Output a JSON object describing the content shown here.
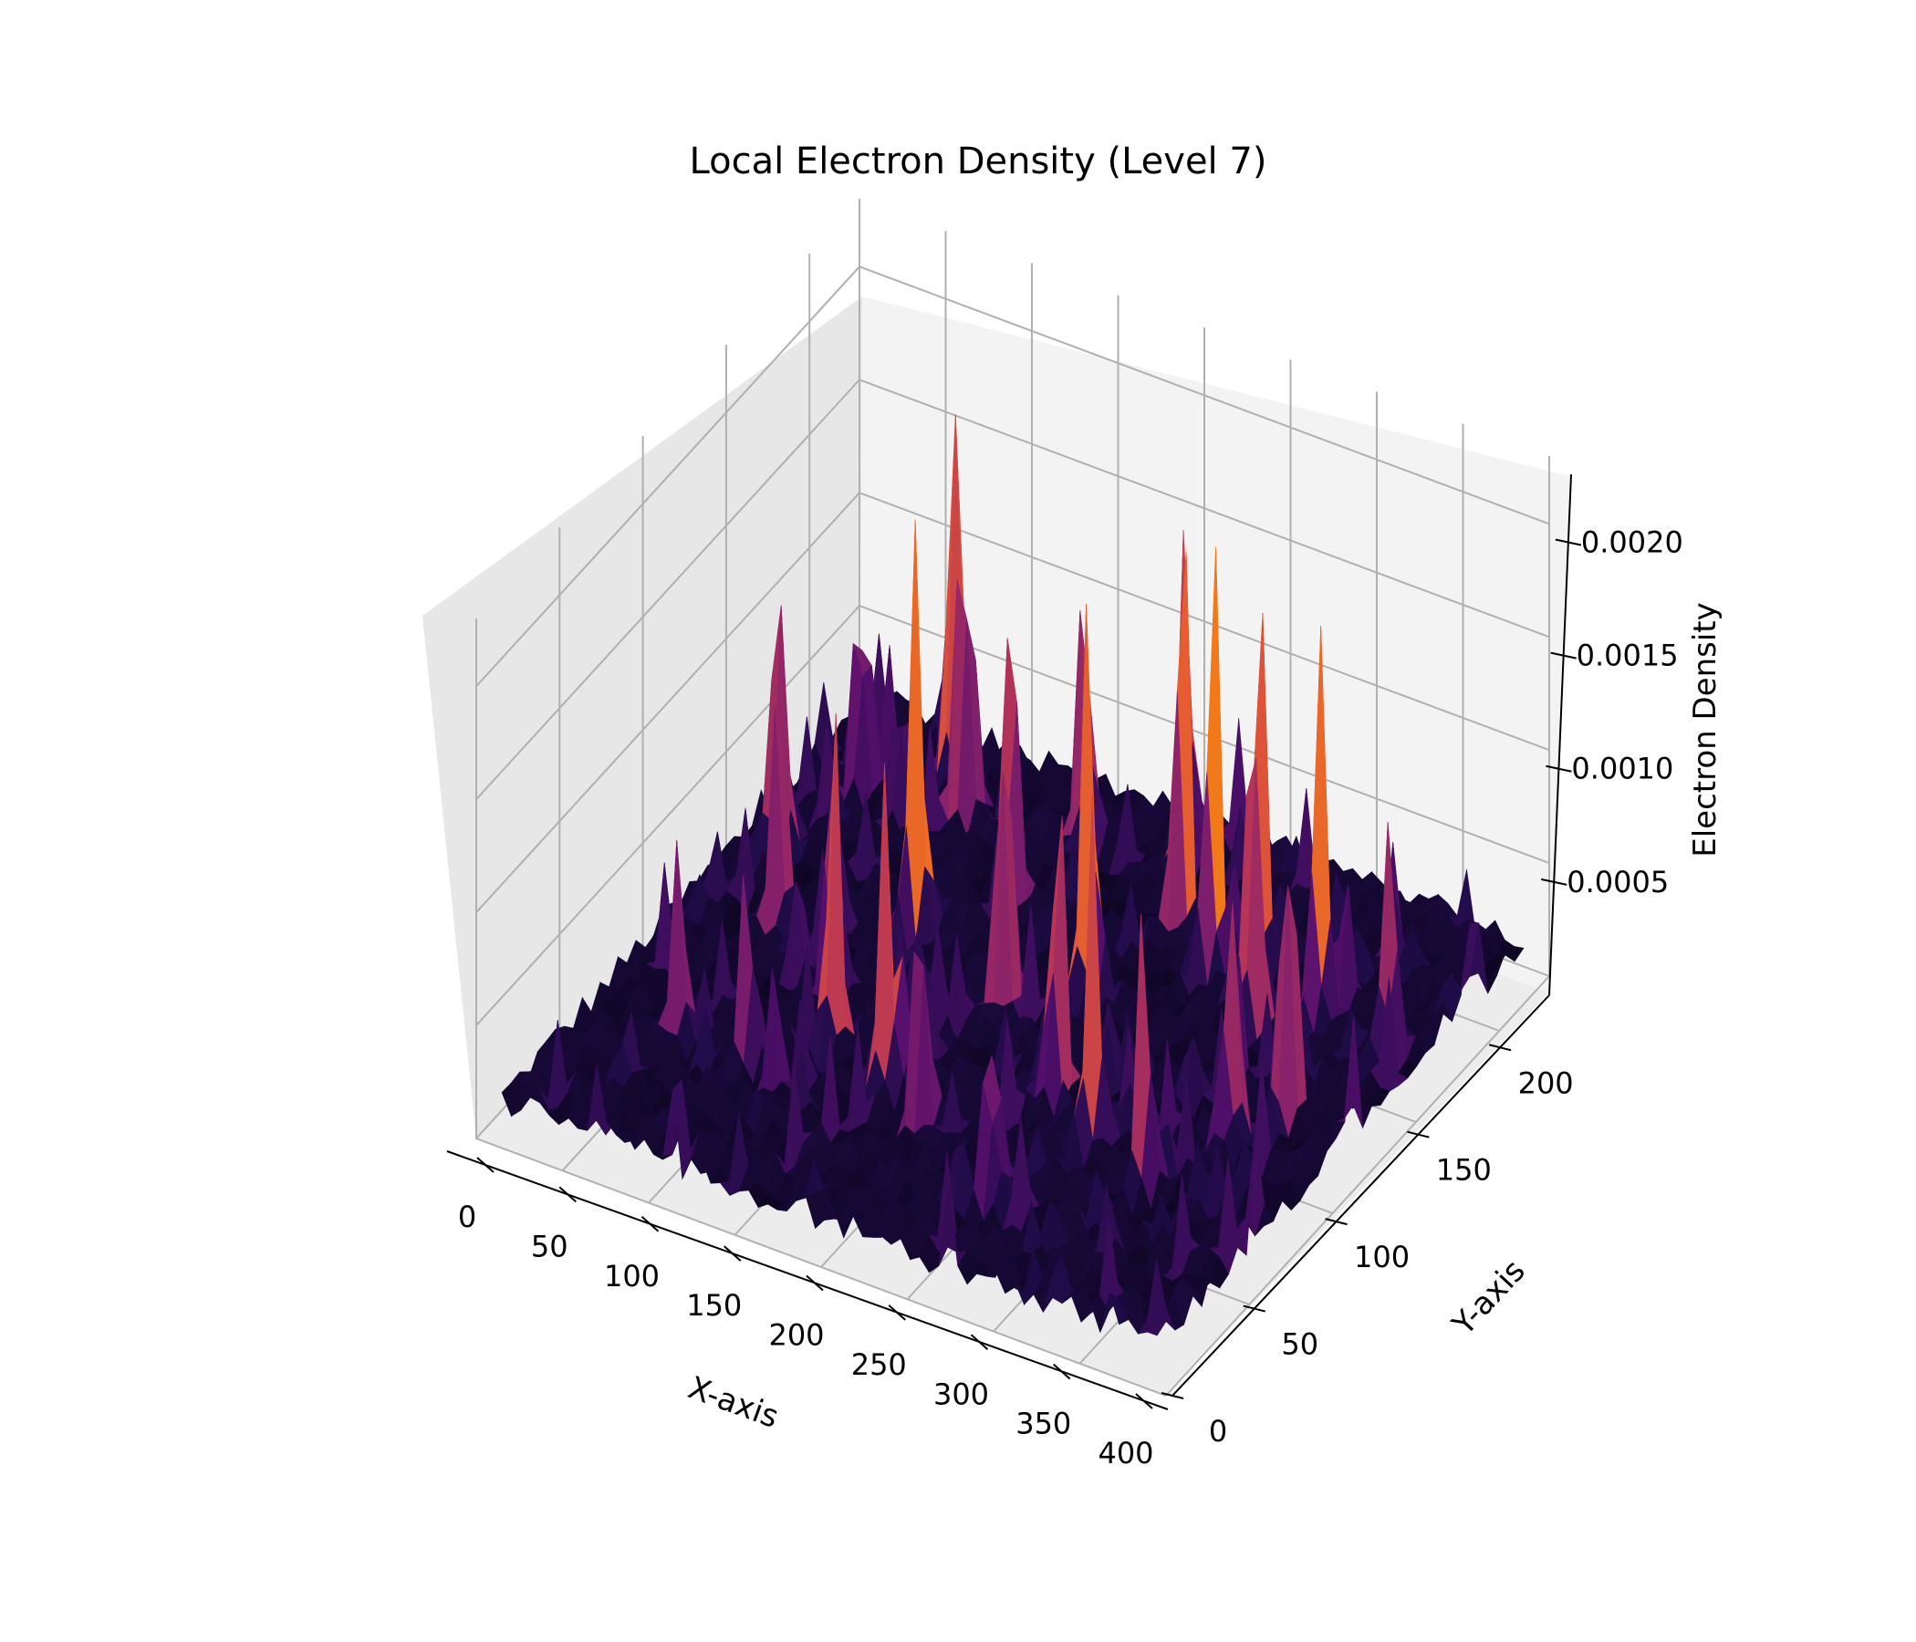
{
  "chart_data": {
    "type": "surface3d",
    "title": "Local Electron Density (Level 7)",
    "xlabel": "X-axis",
    "ylabel": "Y-axis",
    "zlabel": "Electron Density",
    "xlim": [
      0,
      400
    ],
    "ylim": [
      0,
      230
    ],
    "zlim": [
      0,
      0.0023
    ],
    "xticks": [
      "0",
      "50",
      "100",
      "150",
      "200",
      "250",
      "300",
      "350",
      "400"
    ],
    "yticks": [
      "0",
      "50",
      "100",
      "150",
      "200"
    ],
    "zticks": [
      "0.0005",
      "0.0010",
      "0.0015",
      "0.0020"
    ],
    "colormap": "inferno",
    "grid": true,
    "peaks": [
      {
        "x": 235,
        "y": 180,
        "z": 0.0021
      },
      {
        "x": 263,
        "y": 170,
        "z": 0.00205
      },
      {
        "x": 285,
        "y": 175,
        "z": 0.0019
      },
      {
        "x": 95,
        "y": 195,
        "z": 0.0019
      },
      {
        "x": 120,
        "y": 140,
        "z": 0.00185
      },
      {
        "x": 75,
        "y": 210,
        "z": 0.0018
      },
      {
        "x": 330,
        "y": 165,
        "z": 0.00185
      },
      {
        "x": 305,
        "y": 150,
        "z": 0.0017
      },
      {
        "x": 395,
        "y": 195,
        "z": 0.0018
      },
      {
        "x": 220,
        "y": 140,
        "z": 0.00175
      },
      {
        "x": 190,
        "y": 120,
        "z": 0.00165
      },
      {
        "x": 150,
        "y": 165,
        "z": 0.0016
      },
      {
        "x": 355,
        "y": 120,
        "z": 0.00165
      },
      {
        "x": 30,
        "y": 150,
        "z": 0.0014
      },
      {
        "x": 40,
        "y": 190,
        "z": 0.0013
      },
      {
        "x": 60,
        "y": 120,
        "z": 0.00125
      },
      {
        "x": 130,
        "y": 80,
        "z": 0.0015
      },
      {
        "x": 170,
        "y": 70,
        "z": 0.0014
      },
      {
        "x": 245,
        "y": 95,
        "z": 0.0016
      },
      {
        "x": 280,
        "y": 80,
        "z": 0.00145
      },
      {
        "x": 320,
        "y": 70,
        "z": 0.0013
      },
      {
        "x": 200,
        "y": 60,
        "z": 0.0012
      },
      {
        "x": 100,
        "y": 60,
        "z": 0.0011
      },
      {
        "x": 340,
        "y": 100,
        "z": 0.00125
      },
      {
        "x": 375,
        "y": 160,
        "z": 0.00115
      },
      {
        "x": 160,
        "y": 200,
        "z": 0.0014
      },
      {
        "x": 110,
        "y": 100,
        "z": 0.0012
      },
      {
        "x": 260,
        "y": 40,
        "z": 0.001
      },
      {
        "x": 210,
        "y": 210,
        "z": 0.0013
      },
      {
        "x": 60,
        "y": 60,
        "z": 0.0009
      }
    ]
  }
}
